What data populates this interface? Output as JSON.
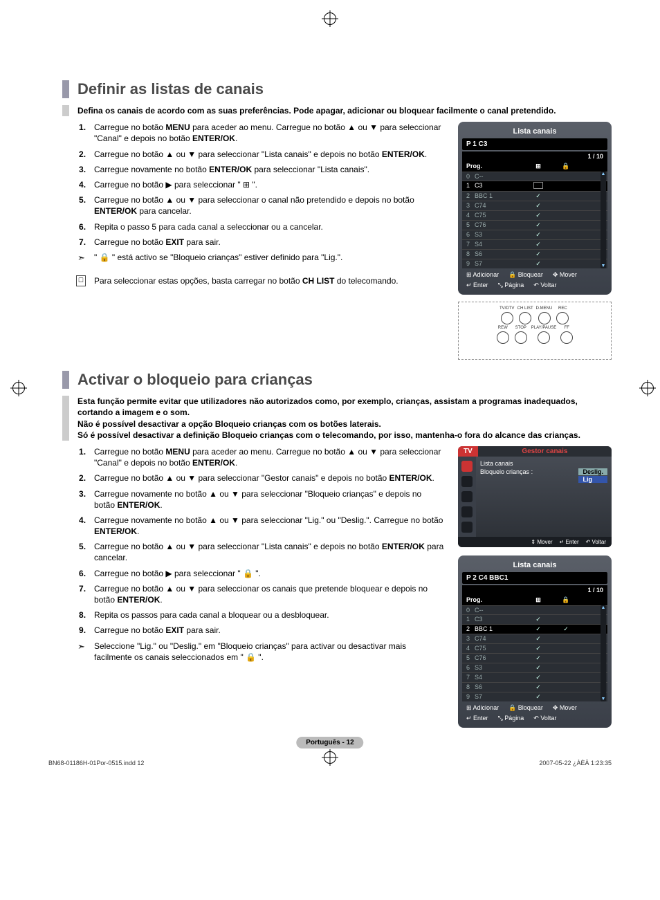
{
  "section1": {
    "title": "Definir as listas de canais",
    "intro": "Defina os canais de acordo com as suas preferências. Pode apagar, adicionar ou bloquear facilmente o canal pretendido.",
    "steps": [
      "Carregue no botão <b>MENU</b> para aceder ao menu. Carregue no botão ▲ ou ▼ para seleccionar \"Canal\" e depois no botão <b>ENTER/OK</b>.",
      "Carregue no botão ▲ ou ▼ para seleccionar \"Lista canais\" e depois no botão <b>ENTER/OK</b>.",
      "Carregue novamente no botão <b>ENTER/OK</b> para seleccionar \"Lista canais\".",
      "Carregue no botão ▶ para seleccionar \" ⊞ \".",
      "Carregue no botão ▲ ou ▼ para seleccionar o canal não pretendido e depois no botão <b>ENTER/OK</b> para cancelar.",
      "Repita o passo 5 para cada canal a seleccionar ou a cancelar.",
      "Carregue no botão <b>EXIT</b> para sair."
    ],
    "arrow_note": "\" 🔒 \" está activo se \"Bloqueio crianças\" estiver definido para \"Lig.\".",
    "remote_note": "Para seleccionar estas opções, basta carregar no botão <b>CH LIST</b> do telecomando."
  },
  "section2": {
    "title": "Activar o bloqueio para crianças",
    "intro": "Esta função permite evitar que utilizadores não autorizados como, por exemplo, crianças, assistam a programas inadequados, cortando a imagem e o som.\nNão é possível desactivar a opção Bloqueio crianças com os botões laterais.\nSó é possível desactivar a definição Bloqueio crianças com o telecomando, por isso, mantenha-o fora do alcance das crianças.",
    "steps": [
      "Carregue no botão <b>MENU</b> para aceder ao menu. Carregue no botão ▲ ou ▼ para seleccionar \"Canal\" e depois no botão <b>ENTER/OK</b>.",
      "Carregue no botão ▲ ou ▼ para seleccionar \"Gestor canais\" e depois no botão <b>ENTER/OK</b>.",
      "Carregue novamente no botão ▲ ou ▼ para seleccionar \"Bloqueio crianças\" e depois no botão <b>ENTER/OK</b>.",
      "Carregue novamente no botão ▲ ou ▼ para seleccionar \"Lig.\" ou \"Deslig.\". Carregue no botão <b>ENTER/OK</b>.",
      "Carregue no botão ▲ ou ▼ para seleccionar \"Lista canais\" e depois no botão <b>ENTER/OK</b> para cancelar.",
      "Carregue no botão ▶ para seleccionar \" 🔒 \".",
      "Carregue no botão ▲ ou ▼ para seleccionar os canais que pretende bloquear e depois no botão <b>ENTER/OK</b>.",
      "Repita os passos para cada canal a bloquear ou a desbloquear.",
      "Carregue no botão <b>EXIT</b> para sair."
    ],
    "arrow_note": "Seleccione \"Lig.\" ou \"Deslig.\" em \"Bloqueio crianças\" para activar ou desactivar mais facilmente os canais seleccionados em \" 🔒 \"."
  },
  "osd1": {
    "title": "Lista canais",
    "subtitle": "P  1   C3",
    "count": "1 / 10",
    "head_prog": "Prog.",
    "rows": [
      {
        "n": "0",
        "name": "C--",
        "sel": false,
        "add": "",
        "lock": ""
      },
      {
        "n": "1",
        "name": "C3",
        "sel": true,
        "add": "box",
        "lock": ""
      },
      {
        "n": "2",
        "name": "BBC 1",
        "sel": false,
        "add": "✓",
        "lock": ""
      },
      {
        "n": "3",
        "name": "C74",
        "sel": false,
        "add": "✓",
        "lock": ""
      },
      {
        "n": "4",
        "name": "C75",
        "sel": false,
        "add": "✓",
        "lock": ""
      },
      {
        "n": "5",
        "name": "C76",
        "sel": false,
        "add": "✓",
        "lock": ""
      },
      {
        "n": "6",
        "name": "S3",
        "sel": false,
        "add": "✓",
        "lock": ""
      },
      {
        "n": "7",
        "name": "S4",
        "sel": false,
        "add": "✓",
        "lock": ""
      },
      {
        "n": "8",
        "name": "S6",
        "sel": false,
        "add": "✓",
        "lock": ""
      },
      {
        "n": "9",
        "name": "S7",
        "sel": false,
        "add": "✓",
        "lock": ""
      }
    ],
    "foot": [
      "⊞ Adicionar",
      "🔒 Bloquear",
      "✥ Mover",
      "↵ Enter",
      "⤡ Página",
      "↶ Voltar"
    ]
  },
  "remote": {
    "labels": [
      "TV/DTV",
      "CH LIST",
      "D.MENU",
      "REC",
      "REW",
      "STOP",
      "PLAY/PAUSE",
      "FF"
    ]
  },
  "tvmenu": {
    "tab": "TV",
    "title": "Gestor canais",
    "rows": [
      {
        "label": "Lista canais",
        "value": ""
      },
      {
        "label": "Bloqueio crianças",
        "value": ":",
        "opts": [
          "Deslig.",
          "Lig"
        ],
        "sel": 1
      }
    ],
    "foot": [
      "⇕ Mover",
      "↵ Enter",
      "↶ Voltar"
    ]
  },
  "osd2": {
    "title": "Lista canais",
    "subtitle": "P  2   C4      BBC1",
    "count": "1 / 10",
    "head_prog": "Prog.",
    "rows": [
      {
        "n": "0",
        "name": "C--",
        "sel": false,
        "add": "",
        "lock": ""
      },
      {
        "n": "1",
        "name": "C3",
        "sel": false,
        "add": "✓",
        "lock": ""
      },
      {
        "n": "2",
        "name": "BBC 1",
        "sel": true,
        "add": "✓",
        "lock": "✓"
      },
      {
        "n": "3",
        "name": "C74",
        "sel": false,
        "add": "✓",
        "lock": ""
      },
      {
        "n": "4",
        "name": "C75",
        "sel": false,
        "add": "✓",
        "lock": ""
      },
      {
        "n": "5",
        "name": "C76",
        "sel": false,
        "add": "✓",
        "lock": ""
      },
      {
        "n": "6",
        "name": "S3",
        "sel": false,
        "add": "✓",
        "lock": ""
      },
      {
        "n": "7",
        "name": "S4",
        "sel": false,
        "add": "✓",
        "lock": ""
      },
      {
        "n": "8",
        "name": "S6",
        "sel": false,
        "add": "✓",
        "lock": ""
      },
      {
        "n": "9",
        "name": "S7",
        "sel": false,
        "add": "✓",
        "lock": ""
      }
    ],
    "foot": [
      "⊞ Adicionar",
      "🔒 Bloquear",
      "✥ Mover",
      "↵ Enter",
      "⤡ Página",
      "↶ Voltar"
    ]
  },
  "page_num": "Português - 12",
  "footer_left": "BN68-01186H-01Por-0515.indd   12",
  "footer_right": "2007-05-22   ¿ÀÈÄ 1:23:35"
}
